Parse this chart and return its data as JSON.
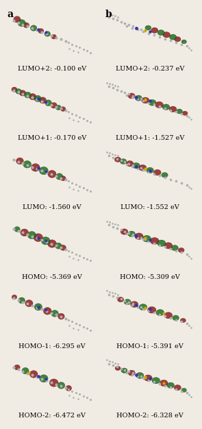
{
  "background_color": "#f0ece3",
  "panel_labels": [
    "a",
    "b"
  ],
  "col_labels_left": [
    "LUMO+2: -0.100 eV",
    "LUMO+1: -0.170 eV",
    "LUMO: -1.560 eV",
    "HOMO: -5.369 eV",
    "HOMO-1: -6.295 eV",
    "HOMO-2: -6.472 eV"
  ],
  "col_labels_right": [
    "LUMO+2: -0.237 eV",
    "LUMO+1: -1.527 eV",
    "LUMO: -1.552 eV",
    "HOMO: -5.309 eV",
    "HOMO-1: -5.391 eV",
    "HOMO-2: -6.328 eV"
  ],
  "label_fontsize": 7.0,
  "panel_label_fontsize": 10,
  "orbital_red": "#8B1818",
  "orbital_green": "#1a6b1a",
  "atom_gray": "#b0b0b0",
  "atom_blue": "#3333aa",
  "atom_yellow": "#ccaa00",
  "nrows": 6,
  "ncols": 2
}
